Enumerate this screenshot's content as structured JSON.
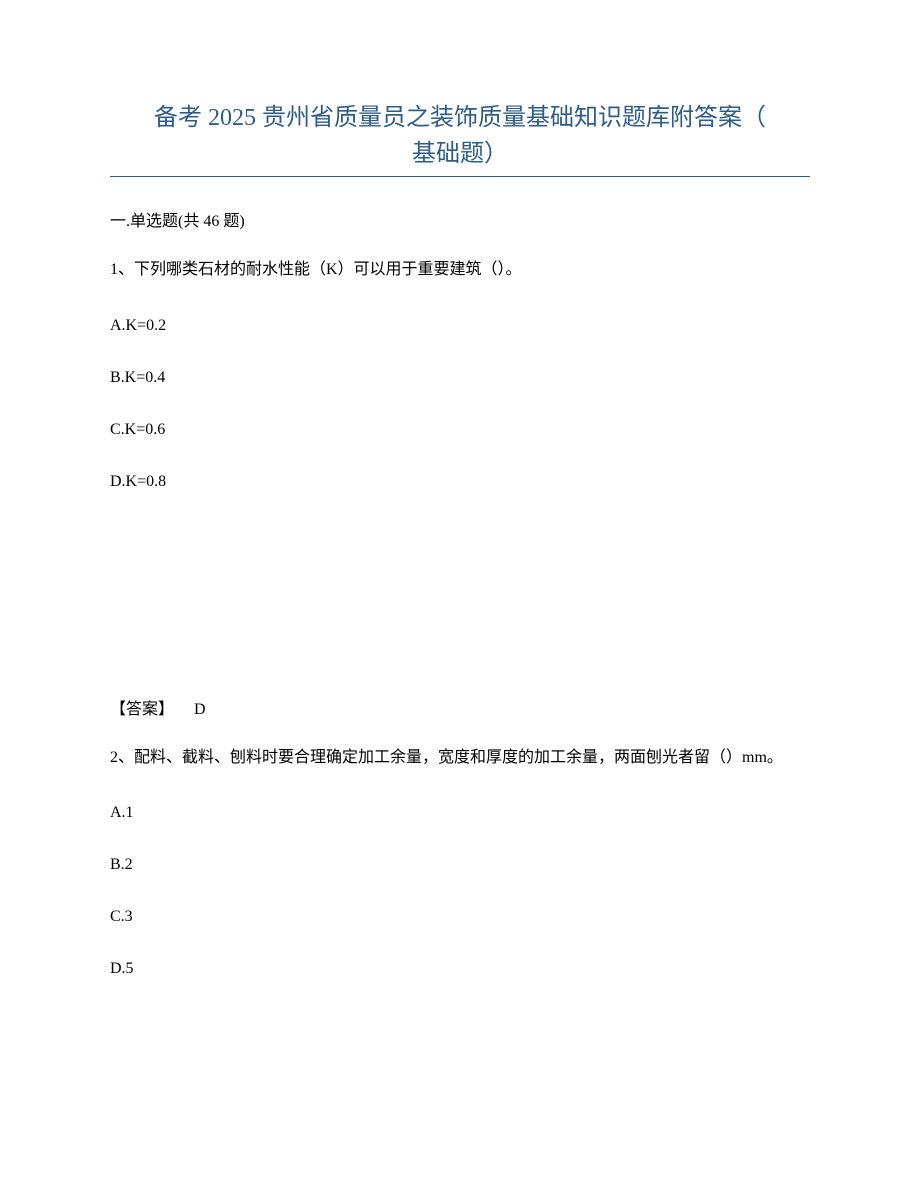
{
  "title_line1": "备考 2025 贵州省质量员之装饰质量基础知识题库附答案（",
  "title_line2": "基础题）",
  "section_header": "一.单选题(共 46 题)",
  "q1": {
    "text": "1、下列哪类石材的耐水性能（K）可以用于重要建筑（）。",
    "optA": "A.K=0.2",
    "optB": "B.K=0.4",
    "optC": "C.K=0.6",
    "optD": "D.K=0.8",
    "answer_label": "【答案】",
    "answer_value": "D"
  },
  "q2": {
    "text": "2、配料、截料、刨料时要合理确定加工余量，宽度和厚度的加工余量，两面刨光者留（）mm。",
    "optA": "A.1",
    "optB": "B.2",
    "optC": "C.3",
    "optD": "D.5"
  },
  "colors": {
    "title_color": "#2e5c8a",
    "text_color": "#000000",
    "background": "#ffffff"
  },
  "typography": {
    "title_fontsize": 24,
    "body_fontsize": 16
  }
}
